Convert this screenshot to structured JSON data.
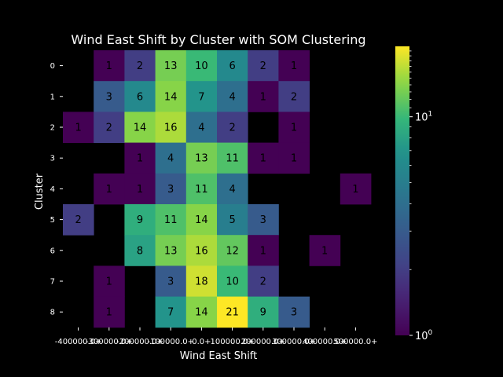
{
  "chart_data": {
    "type": "heatmap",
    "title": "Wind East Shift by Cluster with SOM Clustering",
    "xlabel": "Wind East Shift",
    "ylabel": "Cluster",
    "x_tick_labels": [
      "-400000.0+",
      "-300000.0+",
      "-200000.0+",
      "-100000.0+",
      "0.0+",
      "100000.0+",
      "200000.0+",
      "300000.0+",
      "400000.0+",
      "500000.0+"
    ],
    "y_tick_labels": [
      "0",
      "1",
      "2",
      "3",
      "4",
      "5",
      "6",
      "7",
      "8"
    ],
    "matrix": [
      [
        null,
        1,
        2,
        13,
        10,
        6,
        2,
        1,
        null,
        null
      ],
      [
        null,
        3,
        6,
        14,
        7,
        4,
        1,
        2,
        null,
        null
      ],
      [
        1,
        2,
        14,
        16,
        4,
        2,
        null,
        1,
        null,
        null
      ],
      [
        null,
        null,
        1,
        4,
        13,
        11,
        1,
        1,
        null,
        null
      ],
      [
        null,
        1,
        1,
        3,
        11,
        4,
        null,
        null,
        null,
        1
      ],
      [
        2,
        null,
        9,
        11,
        14,
        5,
        3,
        null,
        null,
        null
      ],
      [
        null,
        null,
        8,
        13,
        16,
        12,
        1,
        null,
        1,
        null
      ],
      [
        null,
        1,
        null,
        3,
        18,
        10,
        2,
        null,
        null,
        null
      ],
      [
        null,
        1,
        null,
        7,
        14,
        21,
        9,
        3,
        null,
        null
      ]
    ],
    "colormap": "viridis",
    "color_scale": "log",
    "color_range": [
      1,
      21
    ],
    "colorbar_ticks": [
      {
        "base": "10",
        "exp": "0",
        "value": 1
      },
      {
        "base": "10",
        "exp": "1",
        "value": 10
      }
    ],
    "colors": {
      "background": "#000000",
      "text": "#ffffff",
      "cell_text": "#000000"
    }
  }
}
